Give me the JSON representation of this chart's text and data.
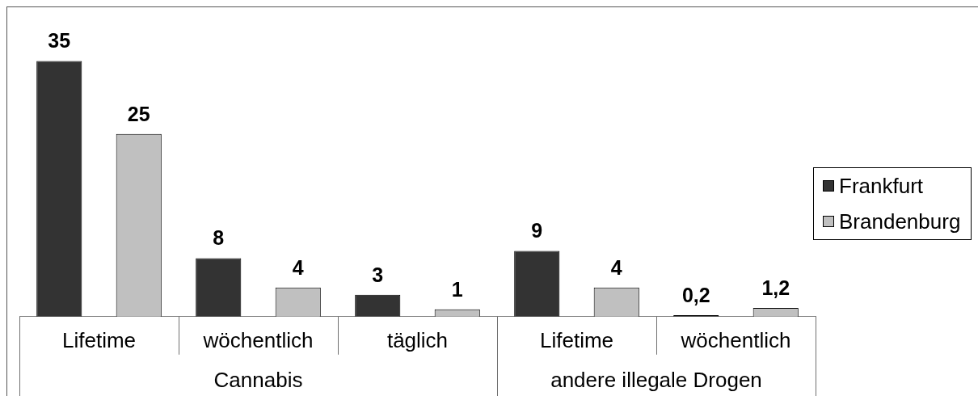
{
  "chart_data": {
    "type": "bar",
    "categories": [
      "Lifetime",
      "wöchentlich",
      "täglich",
      "Lifetime",
      "wöchentlich"
    ],
    "series": [
      {
        "name": "Frankfurt",
        "color": "#333333",
        "values": [
          35,
          8,
          3,
          9,
          0.2
        ],
        "value_labels": [
          "35",
          "8",
          "3",
          "9",
          "0,2"
        ]
      },
      {
        "name": "Brandenburg",
        "color": "#c0c0c0",
        "values": [
          25,
          4,
          1,
          4,
          1.2
        ],
        "value_labels": [
          "25",
          "4",
          "1",
          "4",
          "1,2"
        ]
      }
    ],
    "annotations": [
      "Cannabis",
      "andere illegale Drogen"
    ],
    "legend": "right",
    "grid": false
  }
}
